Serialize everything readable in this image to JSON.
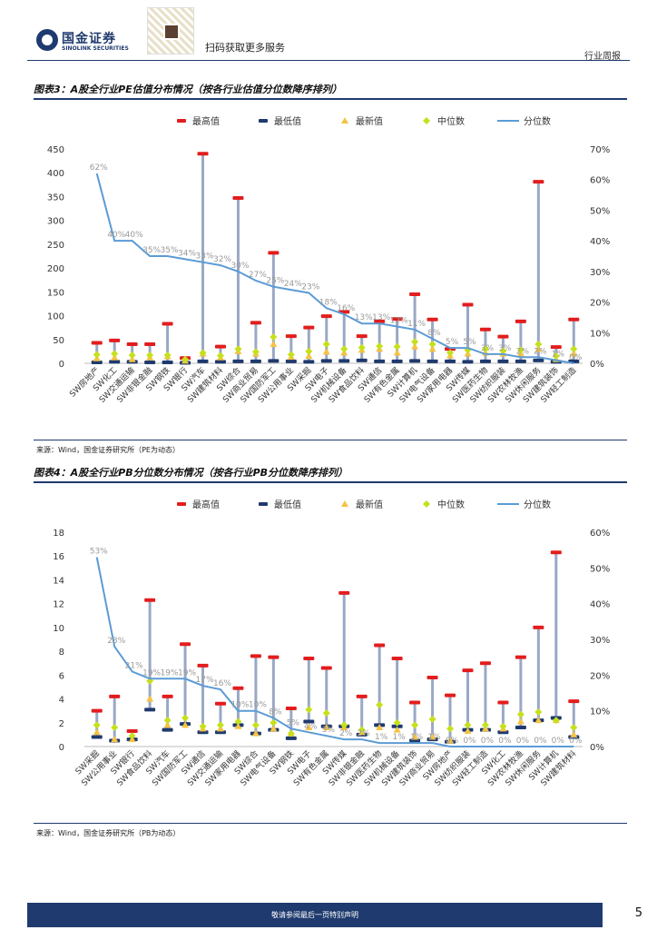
{
  "header": {
    "logo_cn": "国金证券",
    "logo_en": "SINOLINK SECURITIES",
    "qr_caption": "扫码获取更多服务",
    "report_type": "行业周报"
  },
  "figure3": {
    "title": "图表3：A股全行业PE估值分布情况（按各行业估值分位数降序排列）",
    "source": "来源：Wind，国金证券研究所（PE为动态）"
  },
  "figure4": {
    "title": "图表4：A股全行业PB分位数分布情况（按各行业PB分位数降序排列）",
    "source": "来源：Wind，国金证券研究所（PB为动态）"
  },
  "legend": {
    "max": "最高值",
    "min": "最低值",
    "latest": "最新值",
    "median": "中位数",
    "pct": "分位数"
  },
  "colors": {
    "max": "#e31d1d",
    "min": "#1f3a6e",
    "latest": "#f5c342",
    "median": "#c6e01c",
    "pct": "#5b9bd5",
    "whisker": "#9aa8c6",
    "brand": "#1f3a6e"
  },
  "footer": {
    "disclaimer": "敬请参阅最后一页特别声明",
    "page": "5"
  },
  "chart_data": [
    {
      "type": "box-range-with-percentile-line",
      "title": "A股全行业PE估值分布情况",
      "yleft_ticks": [
        "0",
        "50",
        "100",
        "150",
        "200",
        "250",
        "300",
        "350",
        "400",
        "450"
      ],
      "yleft_range": [
        0,
        450
      ],
      "yright_ticks": [
        "0%",
        "10%",
        "20%",
        "30%",
        "40%",
        "50%",
        "60%",
        "70%"
      ],
      "yright_range": [
        0,
        70
      ],
      "categories": [
        "SW房地产",
        "SW化工",
        "SW交通运输",
        "SW非银金融",
        "SW钢铁",
        "SW银行",
        "SW汽车",
        "SW建筑材料",
        "SW综合",
        "SW商业贸易",
        "SW国防军工",
        "SW公用事业",
        "SW采掘",
        "SW电子",
        "SW机械设备",
        "SW食品饮料",
        "SW通信",
        "SW有色金属",
        "SW计算机",
        "SW电气设备",
        "SW家用电器",
        "SW传媒",
        "SW医药生物",
        "SW纺织服装",
        "SW农林牧渔",
        "SW休闲服务",
        "SW建筑装饰",
        "SW轻工制造"
      ],
      "series": [
        {
          "name": "最高值",
          "values": [
            43,
            48,
            40,
            40,
            83,
            11,
            440,
            35,
            347,
            85,
            232,
            57,
            75,
            99,
            108,
            57,
            88,
            93,
            145,
            92,
            30,
            123,
            71,
            56,
            88,
            381,
            34,
            92
          ]
        },
        {
          "name": "最低值",
          "values": [
            2,
            3,
            3,
            2,
            2,
            1,
            4,
            3,
            4,
            4,
            5,
            4,
            3,
            5,
            5,
            6,
            4,
            4,
            5,
            4,
            4,
            3,
            4,
            4,
            4,
            6,
            3,
            4
          ]
        },
        {
          "name": "最新值",
          "values": [
            10,
            12,
            8,
            12,
            14,
            5,
            20,
            12,
            25,
            20,
            40,
            13,
            15,
            24,
            22,
            28,
            30,
            22,
            35,
            30,
            16,
            20,
            22,
            20,
            20,
            30,
            8,
            20
          ]
        },
        {
          "name": "中位数",
          "values": [
            18,
            20,
            17,
            17,
            17,
            8,
            22,
            16,
            30,
            24,
            55,
            18,
            25,
            40,
            30,
            33,
            36,
            35,
            45,
            40,
            22,
            28,
            30,
            26,
            28,
            40,
            15,
            30
          ]
        },
        {
          "name": "分位数",
          "values": [
            62,
            40,
            40,
            35,
            35,
            34,
            33,
            32,
            30,
            27,
            25,
            24,
            23,
            18,
            16,
            13,
            13,
            12,
            11,
            8,
            5,
            5,
            3,
            3,
            2,
            2,
            1,
            0
          ]
        }
      ],
      "pct_labels": [
        "62%",
        "40%",
        "40%",
        "35%",
        "35%",
        "34%",
        "33%",
        "32%",
        "30%",
        "27%",
        "25%",
        "24%",
        "23%",
        "18%",
        "16%",
        "13%",
        "13%",
        "12%",
        "11%",
        "8%",
        "5%",
        "5%",
        "3%",
        "3%",
        "2%",
        "2%",
        "1%",
        "0%"
      ]
    },
    {
      "type": "box-range-with-percentile-line",
      "title": "A股全行业PB分位数分布情况",
      "yleft_ticks": [
        "0",
        "2",
        "4",
        "6",
        "8",
        "10",
        "12",
        "14",
        "16",
        "18"
      ],
      "yleft_range": [
        0,
        18
      ],
      "yright_ticks": [
        "0%",
        "10%",
        "20%",
        "30%",
        "40%",
        "50%",
        "60%"
      ],
      "yright_range": [
        0,
        60
      ],
      "categories": [
        "SW采掘",
        "SW公用事业",
        "SW银行",
        "SW食品饮料",
        "SW汽车",
        "SW国防军工",
        "SW通信",
        "SW交通运输",
        "SW家用电器",
        "SW综合",
        "SW电气设备",
        "SW钢铁",
        "SW电子",
        "SW有色金属",
        "SW传媒",
        "SW非银金融",
        "SW医药生物",
        "SW机械设备",
        "SW建筑装饰",
        "SW商业贸易",
        "SW房地产",
        "SW纺织服装",
        "SW轻工制造",
        "SW化工",
        "SW农林牧渔",
        "SW休闲服务",
        "SW计算机",
        "SW建筑材料"
      ],
      "series": [
        {
          "name": "最高值",
          "values": [
            3.0,
            4.2,
            1.3,
            12.3,
            4.2,
            8.6,
            6.8,
            3.6,
            4.9,
            7.6,
            7.5,
            3.2,
            7.4,
            6.6,
            12.9,
            4.2,
            8.5,
            7.4,
            3.7,
            5.8,
            4.3,
            6.4,
            7.0,
            3.7,
            7.5,
            10.0,
            16.3,
            3.8
          ]
        },
        {
          "name": "最低值",
          "values": [
            0.8,
            0.5,
            0.6,
            3.1,
            1.4,
            1.9,
            1.2,
            1.2,
            1.8,
            1.1,
            1.4,
            0.7,
            2.1,
            1.7,
            1.7,
            1.0,
            1.8,
            1.7,
            0.5,
            0.6,
            0.4,
            1.4,
            1.4,
            1.2,
            1.6,
            2.2,
            2.4,
            0.8
          ]
        },
        {
          "name": "最新值",
          "values": [
            1.2,
            0.6,
            0.6,
            4.0,
            1.8,
            1.8,
            1.5,
            1.5,
            1.7,
            1.1,
            1.5,
            1.1,
            1.6,
            1.6,
            1.6,
            1.2,
            1.6,
            1.4,
            0.8,
            0.8,
            0.5,
            1.3,
            1.5,
            1.5,
            2.1,
            2.2,
            2.2,
            1.0
          ]
        },
        {
          "name": "中位数",
          "values": [
            1.8,
            1.6,
            0.9,
            5.5,
            2.2,
            2.4,
            1.7,
            1.8,
            2.1,
            1.8,
            2.0,
            1.1,
            3.1,
            2.8,
            1.8,
            1.4,
            3.5,
            2.0,
            1.8,
            2.3,
            1.5,
            1.8,
            1.8,
            1.7,
            2.7,
            2.9,
            2.2,
            1.6
          ]
        },
        {
          "name": "分位数",
          "values": [
            53,
            28,
            21,
            19,
            19,
            19,
            17,
            16,
            10,
            10,
            8,
            5,
            4,
            3,
            2,
            2,
            1,
            1,
            1,
            1,
            0,
            0,
            0,
            0,
            0,
            0,
            0,
            0
          ]
        }
      ],
      "pct_labels": [
        "53%",
        "28%",
        "21%",
        "19%",
        "19%",
        "19%",
        "17%",
        "16%",
        "10%",
        "10%",
        "8%",
        "5%",
        "4%",
        "3%",
        "2%",
        "2%",
        "1%",
        "1%",
        "1%",
        "1%",
        "0%",
        "0%",
        "0%",
        "0%",
        "0%",
        "0%",
        "0%",
        "0%"
      ]
    }
  ]
}
